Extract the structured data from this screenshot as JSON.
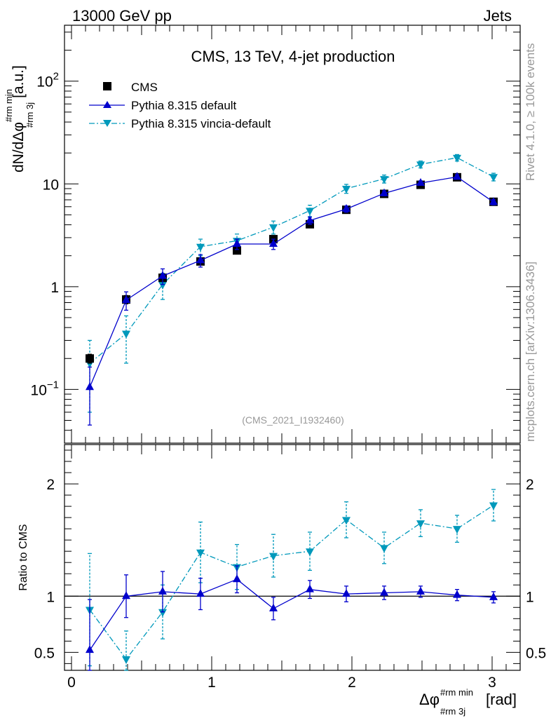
{
  "header": {
    "left": "13000 GeV pp",
    "right": "Jets"
  },
  "side_labels": {
    "rivet": "Rivet 4.1.0, ≥ 100k events",
    "mcplots": "mcplots.cern.ch [arXiv:1306.3436]"
  },
  "plot_title": "CMS, 13 TeV, 4-jet production",
  "analysis_id": "(CMS_2021_I1932460)",
  "colors": {
    "cms": "#000000",
    "default": "#0000cc",
    "vincia": "#0099bb",
    "axis": "#000000",
    "side_text": "#999999"
  },
  "chart_data": [
    {
      "type": "scatter",
      "title": "CMS, 13 TeV, 4-jet production",
      "ylabel": {
        "main": "dN/dΔφ",
        "sup": "#rm min",
        "sub": "#rm 3j",
        "unit": "[a.u.]"
      },
      "yscale": "log",
      "ylim": [
        0.03,
        350
      ],
      "ytick_labels": [
        {
          "v": 0.1,
          "base": "10",
          "exp": "−1"
        },
        {
          "v": 1,
          "base": "1",
          "exp": ""
        },
        {
          "v": 10,
          "base": "10",
          "exp": ""
        },
        {
          "v": 100,
          "base": "10",
          "exp": "2"
        }
      ],
      "legend_position": "top-left",
      "x": [
        0.13,
        0.39,
        0.65,
        0.92,
        1.18,
        1.44,
        1.7,
        1.96,
        2.23,
        2.49,
        2.75,
        3.01
      ],
      "series": [
        {
          "name": "CMS",
          "style": "markers",
          "values": [
            0.2,
            0.75,
            1.22,
            1.76,
            2.25,
            2.9,
            4.05,
            5.6,
            8.0,
            9.8,
            11.6,
            6.7
          ],
          "err": [
            0.02,
            0.07,
            0.09,
            0.1,
            0.1,
            0.14,
            0.16,
            0.2,
            0.22,
            0.25,
            0.3,
            0.2
          ]
        },
        {
          "name": "Pythia 8.315 default",
          "style": "solid",
          "values": [
            0.105,
            0.74,
            1.27,
            1.8,
            2.6,
            2.6,
            4.4,
            5.7,
            8.1,
            10.2,
            11.7,
            6.65
          ],
          "err": [
            0.06,
            0.15,
            0.22,
            0.25,
            0.3,
            0.3,
            0.35,
            0.4,
            0.45,
            0.5,
            0.6,
            0.4
          ]
        },
        {
          "name": "Pythia 8.315 vincia-default",
          "style": "dashdot",
          "values": [
            0.18,
            0.35,
            1.05,
            2.45,
            2.8,
            3.8,
            5.5,
            9.0,
            11.2,
            15.5,
            18.0,
            11.7
          ],
          "err": [
            0.12,
            0.17,
            0.3,
            0.45,
            0.45,
            0.55,
            0.7,
            0.9,
            1.0,
            1.2,
            1.3,
            1.0
          ]
        }
      ]
    },
    {
      "type": "scatter",
      "ylabel": "Ratio to CMS",
      "xlabel": {
        "main": "Δφ",
        "sup": "#rm min",
        "sub": "#rm 3j",
        "unit": "[rad]"
      },
      "ylim": [
        0.34,
        2.35
      ],
      "xlim": [
        -0.05,
        3.2
      ],
      "x_ticks": [
        0,
        1,
        2,
        3
      ],
      "y_ticks": [
        0.5,
        1,
        2
      ],
      "reference_line": 1,
      "x": [
        0.13,
        0.39,
        0.65,
        0.92,
        1.18,
        1.44,
        1.7,
        1.96,
        2.23,
        2.49,
        2.75,
        3.01
      ],
      "series": [
        {
          "name": "Pythia 8.315 default",
          "style": "solid",
          "values": [
            0.52,
            1.0,
            1.04,
            1.02,
            1.15,
            0.89,
            1.06,
            1.02,
            1.03,
            1.04,
            1.01,
            0.99
          ],
          "err": [
            0.45,
            0.19,
            0.18,
            0.14,
            0.12,
            0.1,
            0.08,
            0.07,
            0.06,
            0.05,
            0.05,
            0.05
          ]
        },
        {
          "name": "Pythia 8.315 vincia-default",
          "style": "dashdot",
          "values": [
            0.88,
            0.44,
            0.86,
            1.39,
            1.26,
            1.36,
            1.4,
            1.68,
            1.43,
            1.65,
            1.6,
            1.81
          ],
          "err": [
            0.5,
            0.25,
            0.24,
            0.27,
            0.2,
            0.19,
            0.17,
            0.16,
            0.14,
            0.12,
            0.12,
            0.14
          ]
        }
      ]
    }
  ]
}
